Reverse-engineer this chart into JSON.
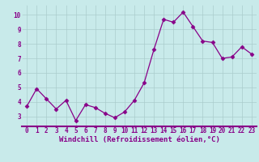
{
  "x": [
    0,
    1,
    2,
    3,
    4,
    5,
    6,
    7,
    8,
    9,
    10,
    11,
    12,
    13,
    14,
    15,
    16,
    17,
    18,
    19,
    20,
    21,
    22,
    23
  ],
  "y": [
    3.7,
    4.9,
    4.2,
    3.5,
    4.1,
    2.7,
    3.8,
    3.6,
    3.2,
    2.9,
    3.3,
    4.1,
    5.3,
    7.6,
    9.7,
    9.5,
    10.2,
    9.2,
    8.2,
    8.1,
    7.0,
    7.1,
    7.8,
    7.3
  ],
  "line_color": "#880088",
  "marker": "D",
  "marker_size": 2.5,
  "bg_color": "#c8eaea",
  "grid_color": "#aacccc",
  "xlabel": "Windchill (Refroidissement éolien,°C)",
  "xlabel_color": "#880088",
  "xlabel_fontsize": 6.5,
  "ylabel_ticks": [
    3,
    4,
    5,
    6,
    7,
    8,
    9,
    10
  ],
  "xlim": [
    -0.5,
    23.5
  ],
  "ylim": [
    2.3,
    10.7
  ],
  "tick_fontsize": 5.5,
  "tick_color": "#880088",
  "border_color": "#880088",
  "spine_bottom_color": "#880088",
  "spine_linewidth": 1.5
}
